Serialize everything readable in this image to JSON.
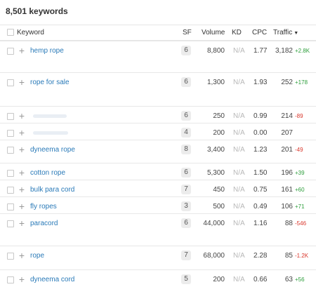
{
  "keyword_count": "8,501 keywords",
  "columns": {
    "keyword": "Keyword",
    "sf": "SF",
    "volume": "Volume",
    "kd": "KD",
    "cpc": "CPC",
    "traffic": "Traffic",
    "sort_indicator": "▼"
  },
  "colors": {
    "link": "#2a7ab8",
    "positive": "#2e9e3c",
    "negative": "#d9362b",
    "kd_muted": "#b8b8b8"
  },
  "rows": [
    {
      "keyword": "hemp rope",
      "sf": "6",
      "volume": "8,800",
      "kd": "N/A",
      "cpc": "1.77",
      "traffic": "3,182",
      "change": "+2.8K",
      "change_dir": "pos"
    },
    {
      "keyword": "rope for sale",
      "sf": "6",
      "volume": "1,300",
      "kd": "N/A",
      "cpc": "1.93",
      "traffic": "252",
      "change": "+178",
      "change_dir": "pos"
    },
    {
      "keyword": "",
      "sf": "6",
      "volume": "250",
      "kd": "N/A",
      "cpc": "0.99",
      "traffic": "214",
      "change": "-89",
      "change_dir": "neg"
    },
    {
      "keyword": "",
      "sf": "4",
      "volume": "200",
      "kd": "N/A",
      "cpc": "0.00",
      "traffic": "207",
      "change": "",
      "change_dir": "none"
    },
    {
      "keyword": "dyneema rope",
      "sf": "8",
      "volume": "3,400",
      "kd": "N/A",
      "cpc": "1.23",
      "traffic": "201",
      "change": "-49",
      "change_dir": "neg"
    },
    {
      "keyword": "cotton rope",
      "sf": "6",
      "volume": "5,300",
      "kd": "N/A",
      "cpc": "1.50",
      "traffic": "196",
      "change": "+39",
      "change_dir": "pos"
    },
    {
      "keyword": "bulk para cord",
      "sf": "7",
      "volume": "450",
      "kd": "N/A",
      "cpc": "0.75",
      "traffic": "161",
      "change": "+60",
      "change_dir": "pos"
    },
    {
      "keyword": "fly ropes",
      "sf": "3",
      "volume": "500",
      "kd": "N/A",
      "cpc": "0.49",
      "traffic": "106",
      "change": "+71",
      "change_dir": "pos"
    },
    {
      "keyword": "paracord",
      "sf": "6",
      "volume": "44,000",
      "kd": "N/A",
      "cpc": "1.16",
      "traffic": "88",
      "change": "-546",
      "change_dir": "neg"
    },
    {
      "keyword": "rope",
      "sf": "7",
      "volume": "68,000",
      "kd": "N/A",
      "cpc": "2.28",
      "traffic": "85",
      "change": "-1.2K",
      "change_dir": "neg"
    },
    {
      "keyword": "dyneema cord",
      "sf": "5",
      "volume": "200",
      "kd": "N/A",
      "cpc": "0.66",
      "traffic": "63",
      "change": "+56",
      "change_dir": "pos"
    }
  ]
}
